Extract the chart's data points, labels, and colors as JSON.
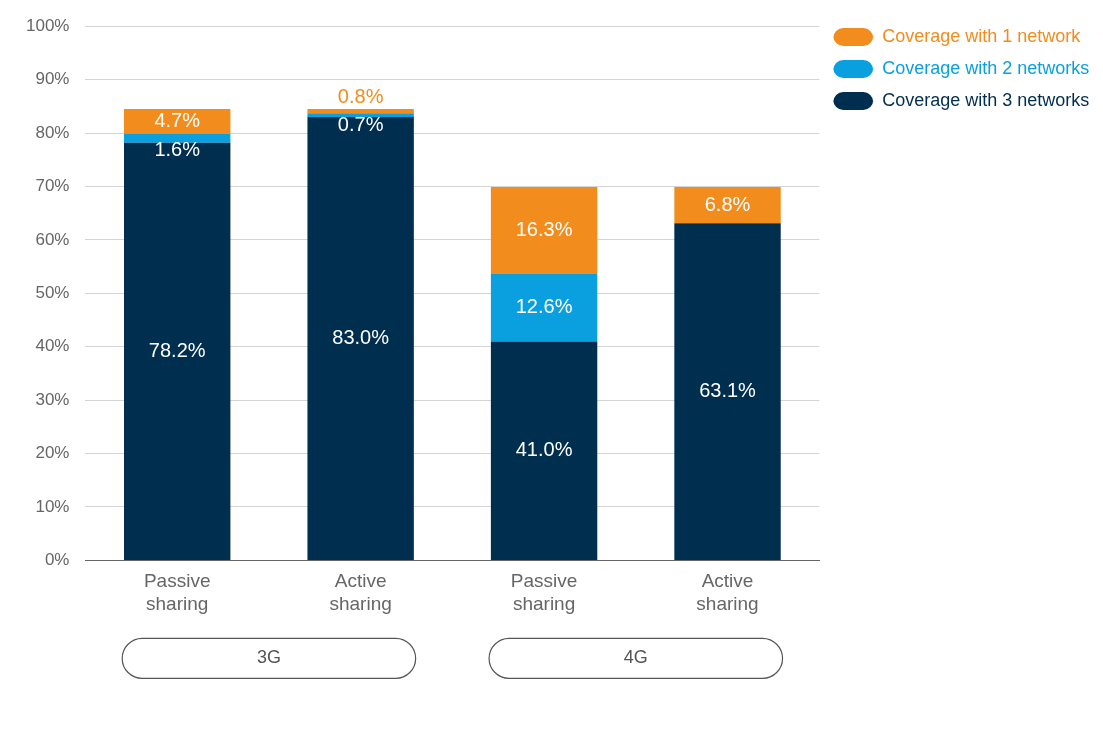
{
  "chart_data": {
    "type": "bar",
    "stacked": true,
    "categories": [
      "Passive sharing",
      "Active sharing",
      "Passive sharing",
      "Active sharing"
    ],
    "series": [
      {
        "name": "Coverage with 3 networks",
        "color": "#002e4f",
        "values": [
          78.2,
          83.0,
          41.0,
          63.1
        ],
        "value_labels": [
          "78.2%",
          "83.0%",
          "41.0%",
          "63.1%"
        ]
      },
      {
        "name": "Coverage with 2 networks",
        "color": "#0aa0e0",
        "values": [
          1.6,
          0.7,
          12.6,
          null
        ],
        "value_labels": [
          "1.6%",
          "0.7%",
          "12.6%",
          null
        ]
      },
      {
        "name": "Coverage with 1 network",
        "color": "#f28c1c",
        "values": [
          4.7,
          0.8,
          16.3,
          6.8
        ],
        "value_labels": [
          "4.7%",
          "0.8%",
          "16.3%",
          "6.8%"
        ]
      }
    ],
    "ylim": [
      0,
      100
    ],
    "yticks": [
      {
        "value": 0,
        "label": "0%"
      },
      {
        "value": 10,
        "label": "10%"
      },
      {
        "value": 20,
        "label": "20%"
      },
      {
        "value": 30,
        "label": "30%"
      },
      {
        "value": 40,
        "label": "40%"
      },
      {
        "value": 50,
        "label": "50%"
      },
      {
        "value": 60,
        "label": "60%"
      },
      {
        "value": 70,
        "label": "70%"
      },
      {
        "value": 80,
        "label": "80%"
      },
      {
        "value": 90,
        "label": "90%"
      },
      {
        "value": 100,
        "label": "100%"
      }
    ],
    "grid": "y",
    "legend": "top right",
    "annotations": [
      "3G",
      "4G"
    ]
  }
}
